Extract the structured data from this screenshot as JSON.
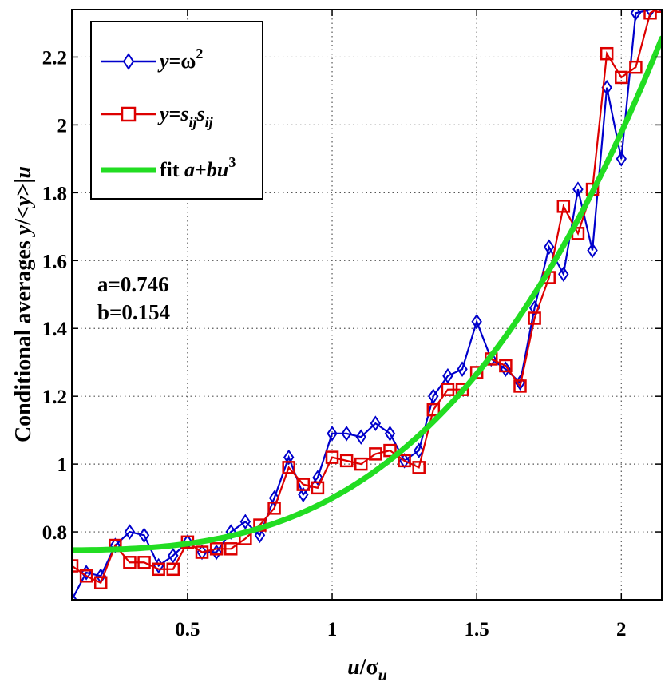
{
  "chart_data": {
    "type": "line",
    "xlabel": "u/σ_u",
    "ylabel": "Conditional averages y/<y>|u",
    "xlim": [
      0.1,
      2.14
    ],
    "ylim": [
      0.6,
      2.34
    ],
    "xticks": [
      0.5,
      1,
      1.5,
      2
    ],
    "xtick_labels": [
      "0.5",
      "1",
      "1.5",
      "2"
    ],
    "yticks": [
      0.8,
      1.0,
      1.2,
      1.4,
      1.6,
      1.8,
      2.0,
      2.2
    ],
    "ytick_labels": [
      "0.8",
      "1",
      "1.2",
      "1.4",
      "1.6",
      "1.8",
      "2",
      "2.2"
    ],
    "grid": true,
    "legend_position": "top-left",
    "annotations": {
      "a": "a=0.746",
      "b": "b=0.154"
    },
    "series": [
      {
        "name": "y=ω²",
        "color": "#0000cc",
        "marker": "diamond",
        "x": [
          0.1,
          0.15,
          0.2,
          0.25,
          0.3,
          0.35,
          0.4,
          0.45,
          0.5,
          0.55,
          0.6,
          0.65,
          0.7,
          0.75,
          0.8,
          0.85,
          0.9,
          0.95,
          1.0,
          1.05,
          1.1,
          1.15,
          1.2,
          1.25,
          1.3,
          1.35,
          1.4,
          1.45,
          1.5,
          1.55,
          1.6,
          1.65,
          1.7,
          1.75,
          1.8,
          1.85,
          1.9,
          1.95,
          2.0,
          2.05,
          2.1,
          2.14
        ],
        "y": [
          0.6,
          0.68,
          0.67,
          0.76,
          0.8,
          0.79,
          0.7,
          0.73,
          0.77,
          0.74,
          0.74,
          0.8,
          0.83,
          0.79,
          0.9,
          1.02,
          0.91,
          0.96,
          1.09,
          1.09,
          1.08,
          1.12,
          1.09,
          1.01,
          1.04,
          1.2,
          1.26,
          1.28,
          1.42,
          1.31,
          1.28,
          1.24,
          1.46,
          1.64,
          1.56,
          1.81,
          1.63,
          2.11,
          1.9,
          2.33,
          2.34,
          2.35
        ]
      },
      {
        "name": "y=s_ij s_ij",
        "color": "#dd0000",
        "marker": "square",
        "x": [
          0.1,
          0.15,
          0.2,
          0.25,
          0.3,
          0.35,
          0.4,
          0.45,
          0.5,
          0.55,
          0.6,
          0.65,
          0.7,
          0.75,
          0.8,
          0.85,
          0.9,
          0.95,
          1.0,
          1.05,
          1.1,
          1.15,
          1.2,
          1.25,
          1.3,
          1.35,
          1.4,
          1.45,
          1.5,
          1.55,
          1.6,
          1.65,
          1.7,
          1.75,
          1.8,
          1.85,
          1.9,
          1.95,
          2.0,
          2.05,
          2.1,
          2.14
        ],
        "y": [
          0.7,
          0.67,
          0.65,
          0.76,
          0.71,
          0.71,
          0.69,
          0.69,
          0.77,
          0.74,
          0.75,
          0.75,
          0.78,
          0.82,
          0.87,
          0.99,
          0.94,
          0.93,
          1.02,
          1.01,
          1.0,
          1.03,
          1.04,
          1.01,
          0.99,
          1.16,
          1.22,
          1.22,
          1.27,
          1.31,
          1.29,
          1.23,
          1.43,
          1.55,
          1.76,
          1.68,
          1.81,
          2.21,
          2.14,
          2.17,
          2.33,
          2.35
        ]
      },
      {
        "name": "fit a+bu³",
        "color": "#22dd22",
        "type": "fit",
        "a": 0.746,
        "b": 0.154
      }
    ]
  }
}
